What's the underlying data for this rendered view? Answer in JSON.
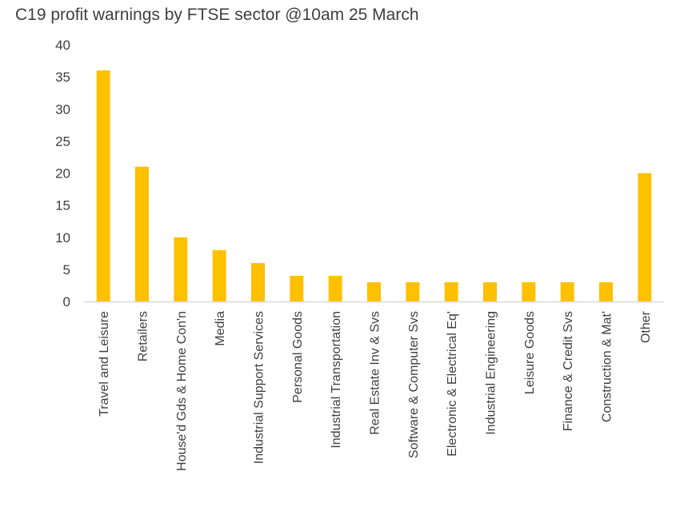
{
  "chart_data": {
    "type": "bar",
    "title": "C19 profit warnings by FTSE sector @10am 25 March",
    "xlabel": "",
    "ylabel": "",
    "ylim": [
      0,
      40
    ],
    "yticks": [
      0,
      5,
      10,
      15,
      20,
      25,
      30,
      35,
      40
    ],
    "grid": false,
    "legend": "none",
    "bar_color": "#FFC000",
    "axis_color": "#D9D9D9",
    "text_color": "#404040",
    "categories": [
      "Travel and Leisure",
      "Retailers",
      "House'd Gds & Home Con'n",
      "Media",
      "Industrial Support Services",
      "Personal Goods",
      "Industrial Transportation",
      "Real Estate Inv & Svs",
      "Software & Computer Svs",
      "Electronic & Electrical Eq'",
      "Industrial Engineering",
      "Leisure Goods",
      "Finance & Credit Svs",
      "Construction & Mat'",
      "Other"
    ],
    "values": [
      36,
      21,
      10,
      8,
      6,
      4,
      4,
      3,
      3,
      3,
      3,
      3,
      3,
      3,
      20
    ]
  }
}
